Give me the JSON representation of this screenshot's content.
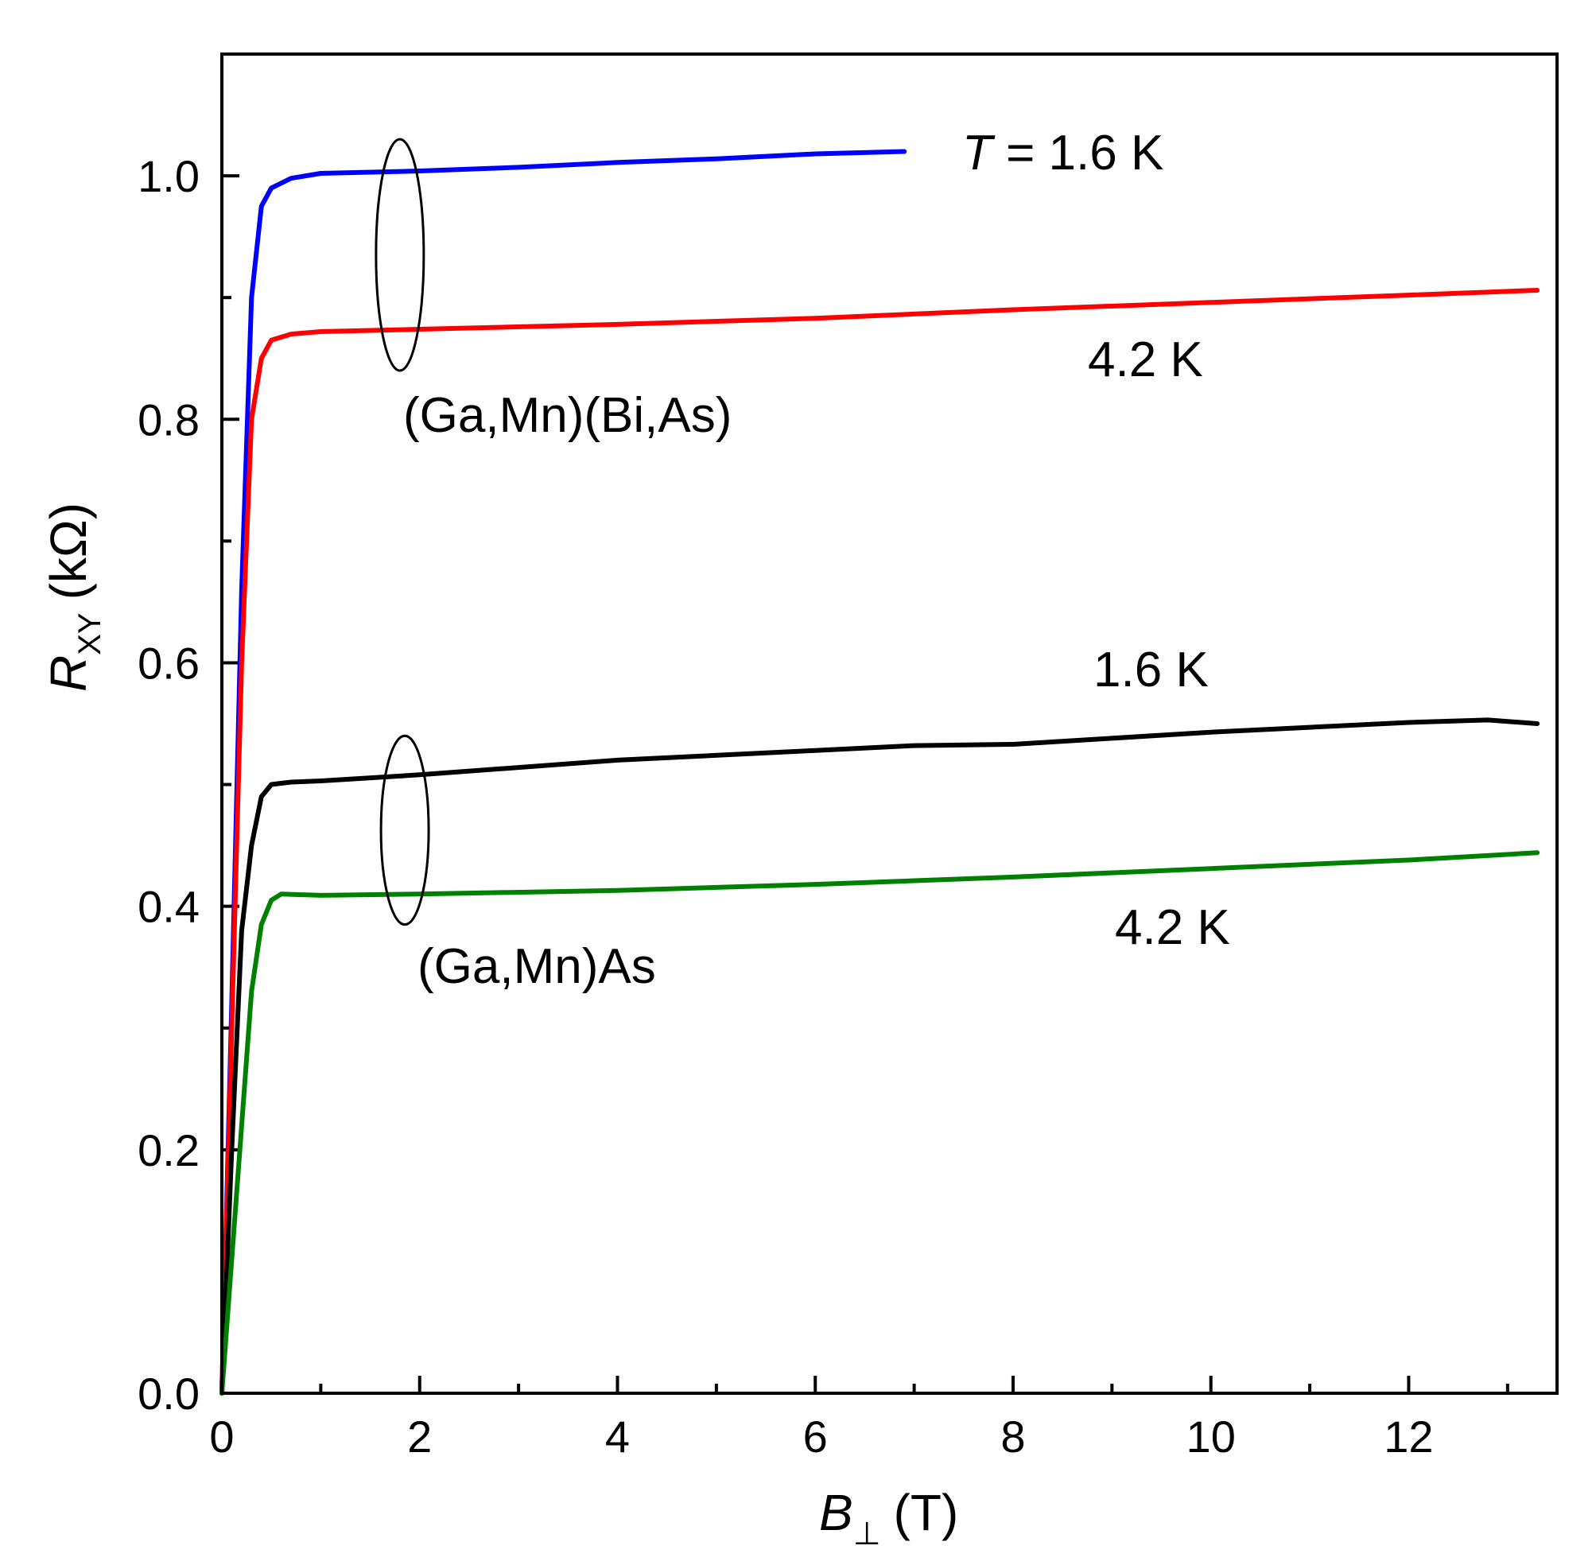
{
  "chart_data": {
    "type": "line",
    "title": "",
    "xlabel": {
      "symbol": "B",
      "subscript": "⊥",
      "unit": "(T)"
    },
    "ylabel": {
      "symbol": "R",
      "subscript": "XY",
      "unit": "(kΩ)"
    },
    "xlim": [
      0,
      13.5
    ],
    "ylim": [
      0,
      1.1
    ],
    "x_ticks": [
      0,
      2,
      4,
      6,
      8,
      10,
      12
    ],
    "x_tick_labels": [
      "0",
      "2",
      "4",
      "6",
      "8",
      "10",
      "12"
    ],
    "x_minor_ticks": [
      1,
      3,
      5,
      7,
      9,
      11,
      13
    ],
    "y_ticks": [
      0,
      0.2,
      0.4,
      0.6,
      0.8,
      1.0
    ],
    "y_tick_labels": [
      "0.0",
      "0.2",
      "0.4",
      "0.6",
      "0.8",
      "1.0"
    ],
    "y_minor_ticks": [
      0.1,
      0.3,
      0.5,
      0.7,
      0.9
    ],
    "series": [
      {
        "name": "(Ga,Mn)(Bi,As) T = 1.6 K",
        "color": "#0000ff",
        "x": [
          0,
          0.1,
          0.2,
          0.3,
          0.4,
          0.5,
          0.7,
          1.0,
          2.0,
          3.0,
          4.0,
          5.0,
          6.0,
          6.9
        ],
        "y": [
          0,
          0.32,
          0.66,
          0.9,
          0.975,
          0.99,
          0.998,
          1.002,
          1.004,
          1.007,
          1.011,
          1.014,
          1.018,
          1.02
        ]
      },
      {
        "name": "(Ga,Mn)(Bi,As) 4.2 K",
        "color": "#ff0000",
        "x": [
          0,
          0.1,
          0.2,
          0.3,
          0.4,
          0.5,
          0.7,
          1.0,
          2.0,
          4.0,
          6.0,
          8.0,
          10.0,
          12.0,
          13.3
        ],
        "y": [
          0,
          0.3,
          0.6,
          0.8,
          0.85,
          0.865,
          0.87,
          0.872,
          0.874,
          0.878,
          0.883,
          0.89,
          0.896,
          0.902,
          0.906
        ]
      },
      {
        "name": "(Ga,Mn)As 1.6 K",
        "color": "#000000",
        "x": [
          0,
          0.1,
          0.2,
          0.3,
          0.4,
          0.5,
          0.7,
          1.0,
          2.0,
          4.0,
          6.0,
          7.0,
          8.0,
          10.0,
          12.0,
          12.8,
          13.3
        ],
        "y": [
          0,
          0.2,
          0.38,
          0.45,
          0.49,
          0.5,
          0.502,
          0.503,
          0.508,
          0.52,
          0.528,
          0.532,
          0.533,
          0.543,
          0.551,
          0.553,
          0.55
        ]
      },
      {
        "name": "(Ga,Mn)As 4.2 K",
        "color": "#008000",
        "x": [
          0,
          0.1,
          0.2,
          0.3,
          0.4,
          0.5,
          0.6,
          1.0,
          2.0,
          4.0,
          6.0,
          8.0,
          10.0,
          12.0,
          13.3
        ],
        "y": [
          0,
          0.11,
          0.22,
          0.33,
          0.385,
          0.405,
          0.41,
          0.409,
          0.41,
          0.413,
          0.418,
          0.424,
          0.431,
          0.438,
          0.444
        ]
      }
    ],
    "annotations": {
      "t16_top": {
        "italic": "T",
        "text": " = 1.6 K"
      },
      "t42_top": "4.2 K",
      "sample_bias": "(Ga,Mn)(Bi,As)",
      "t16_bottom": "1.6 K",
      "t42_bottom": "4.2 K",
      "sample_gamnas": "(Ga,Mn)As"
    },
    "group_ellipses": [
      "(Ga,Mn)(Bi,As)",
      "(Ga,Mn)As"
    ]
  }
}
